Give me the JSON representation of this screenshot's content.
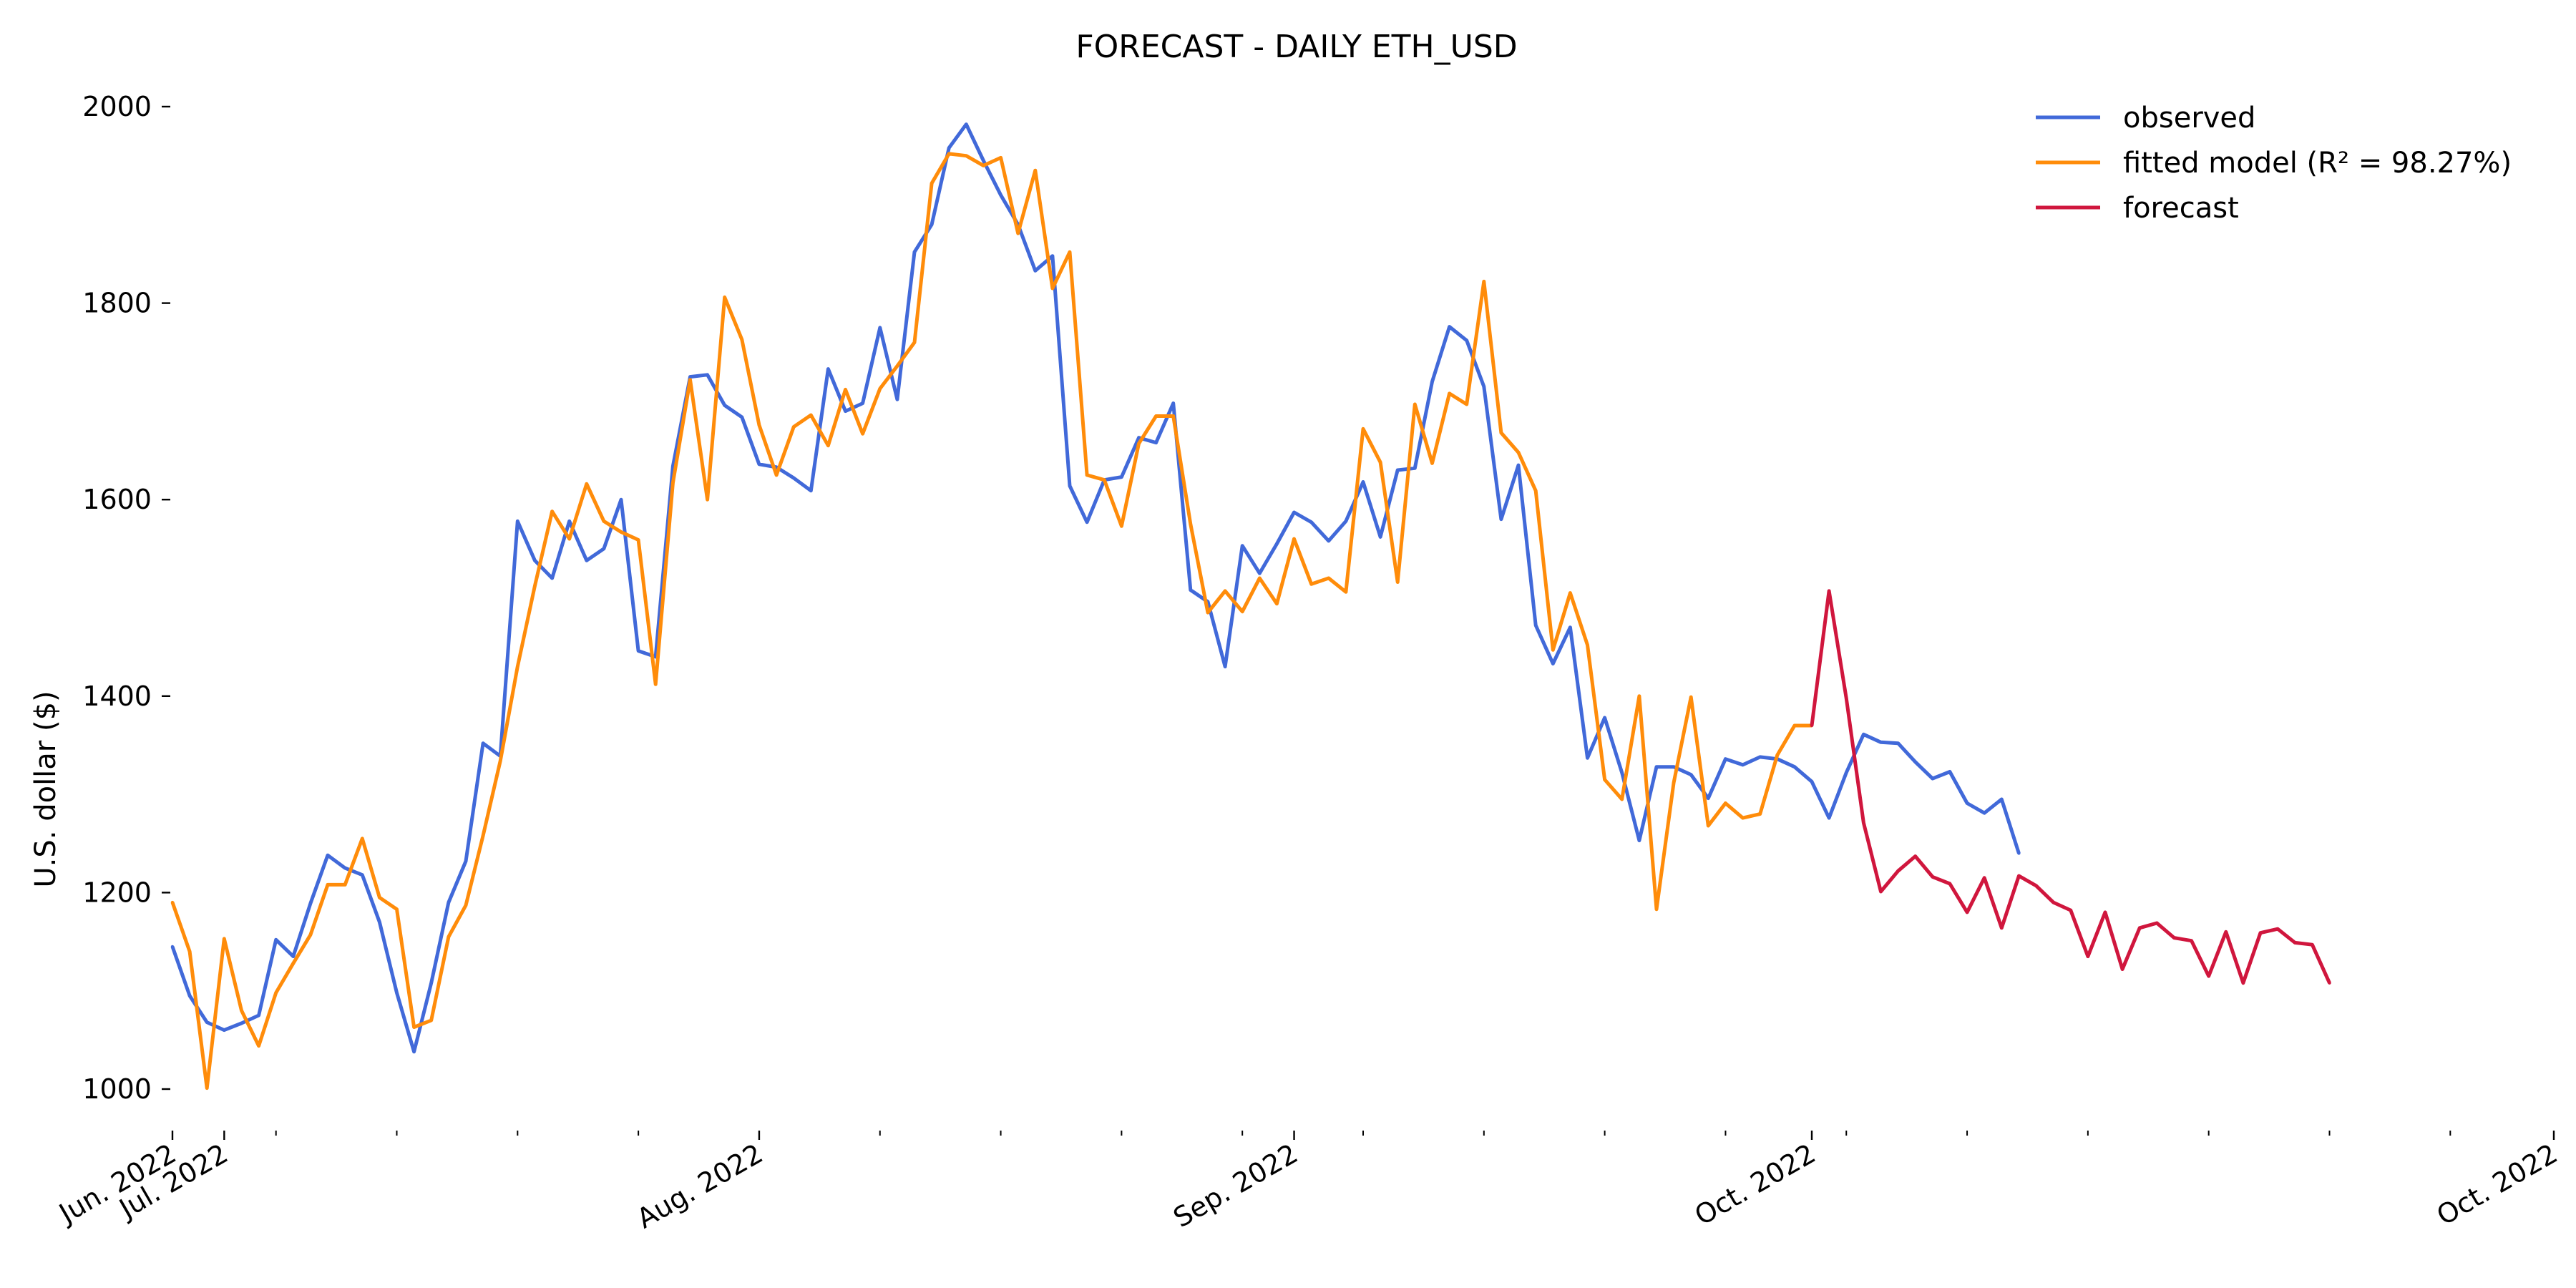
{
  "chart_data": {
    "type": "line",
    "title": "FORECAST - DAILY ETH_USD",
    "ylabel": "U.S. dollar ($)",
    "xlabel": "",
    "ylim": [
      960,
      2020
    ],
    "yticks": [
      1000,
      1200,
      1400,
      1600,
      1800,
      2000
    ],
    "x_range": [
      "2022-06-07",
      "2022-10-23"
    ],
    "x_tick_labels": [
      {
        "date": "2022-06-07",
        "label": "Jun. 2022"
      },
      {
        "date": "2022-06-10",
        "label": "Jul. 2022"
      },
      {
        "date": "2022-07-11",
        "label": "Aug. 2022"
      },
      {
        "date": "2022-08-11",
        "label": "Sep. 2022"
      },
      {
        "date": "2022-09-10",
        "label": "Oct. 2022"
      },
      {
        "date": "2022-10-23",
        "label": "Oct. 2022"
      }
    ],
    "x_minor_ticks": [
      "2022-06-13",
      "2022-06-20",
      "2022-06-27",
      "2022-07-04",
      "2022-07-18",
      "2022-07-25",
      "2022-08-01",
      "2022-08-08",
      "2022-08-15",
      "2022-08-22",
      "2022-08-29",
      "2022-09-05",
      "2022-09-12",
      "2022-09-19",
      "2022-09-26",
      "2022-10-03",
      "2022-10-10",
      "2022-10-17"
    ],
    "legend": {
      "position": "top-right"
    },
    "series": [
      {
        "name": "observed",
        "color": "#4169d9",
        "start_date": "2022-06-07",
        "values": [
          1145,
          1095,
          1068,
          1060,
          1067,
          1075,
          1152,
          1135,
          1189,
          1238,
          1225,
          1218,
          1170,
          1098,
          1038,
          1108,
          1190,
          1232,
          1352,
          1339,
          1578,
          1538,
          1520,
          1578,
          1538,
          1550,
          1600,
          1446,
          1440,
          1634,
          1725,
          1727,
          1696,
          1684,
          1636,
          1633,
          1622,
          1609,
          1733,
          1690,
          1698,
          1775,
          1702,
          1852,
          1880,
          1958,
          1982,
          1945,
          1910,
          1880,
          1833,
          1848,
          1614,
          1577,
          1620,
          1623,
          1663,
          1658,
          1698,
          1508,
          1496,
          1430,
          1553,
          1525,
          1555,
          1587,
          1577,
          1558,
          1578,
          1618,
          1562,
          1630,
          1632,
          1720,
          1776,
          1762,
          1715,
          1580,
          1635,
          1472,
          1433,
          1470,
          1337,
          1378,
          1322,
          1253,
          1328,
          1328,
          1320,
          1296,
          1336,
          1330,
          1338,
          1336,
          1328,
          1313,
          1276,
          1322,
          1361,
          1353,
          1352,
          1333,
          1316,
          1323,
          1291,
          1281,
          1295,
          1240
        ]
      },
      {
        "name": "fitted model (R² = 98.27%)",
        "color": "#ff8c0a",
        "start_date": "2022-06-07",
        "values": [
          1190,
          1140,
          1001,
          1153,
          1080,
          1044,
          1098,
          1128,
          1157,
          1208,
          1208,
          1255,
          1195,
          1183,
          1063,
          1070,
          1155,
          1187,
          1258,
          1334,
          1430,
          1512,
          1588,
          1560,
          1616,
          1578,
          1567,
          1559,
          1412,
          1617,
          1722,
          1600,
          1806,
          1763,
          1676,
          1625,
          1674,
          1686,
          1655,
          1712,
          1667,
          1713,
          1736,
          1760,
          1922,
          1952,
          1950,
          1940,
          1948,
          1871,
          1935,
          1815,
          1852,
          1625,
          1620,
          1573,
          1657,
          1685,
          1685,
          1575,
          1485,
          1507,
          1486,
          1520,
          1494,
          1560,
          1514,
          1520,
          1506,
          1672,
          1638,
          1516,
          1697,
          1637,
          1708,
          1697,
          1822,
          1668,
          1648,
          1609,
          1447,
          1505,
          1452,
          1315,
          1295,
          1400,
          1183,
          1312,
          1399,
          1268,
          1291,
          1276,
          1280,
          1340,
          1370,
          1370
        ]
      },
      {
        "name": "forecast",
        "color": "#d0163d",
        "start_date": "2022-09-10",
        "values": [
          1370,
          1507,
          1398,
          1271,
          1201,
          1222,
          1237,
          1216,
          1209,
          1180,
          1215,
          1164,
          1217,
          1207,
          1190,
          1182,
          1135,
          1180,
          1122,
          1164,
          1169,
          1154,
          1151,
          1115,
          1160,
          1108,
          1159,
          1163,
          1149,
          1147,
          1108
        ]
      }
    ]
  }
}
